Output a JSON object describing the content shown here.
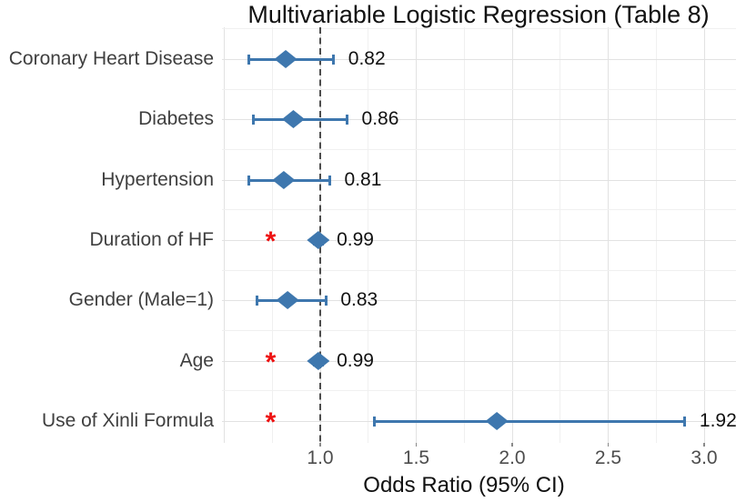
{
  "figure": {
    "title": "Multivariable Logistic Regression (Table 8)",
    "x_axis_label": "Odds Ratio (95% CI)"
  },
  "chart_data": {
    "type": "scatter",
    "variant": "forest-plot",
    "title": "Multivariable Logistic Regression (Table 8)",
    "xlabel": "Odds Ratio (95% CI)",
    "ylabel": "",
    "xlim": [
      0.49,
      3.17
    ],
    "xticks": [
      "1.0",
      "1.5",
      "2.0",
      "2.5",
      "3.0"
    ],
    "xtick_values": [
      1.0,
      1.5,
      2.0,
      2.5,
      3.0
    ],
    "grid": "major+minor",
    "legend": "none",
    "reference_line_x": 1.0,
    "sig_marker": "*",
    "rows": [
      {
        "label": "Coronary Heart Disease",
        "or": 0.82,
        "or_label": "0.82",
        "ci_low": 0.63,
        "ci_high": 1.07,
        "significant": false
      },
      {
        "label": "Diabetes",
        "or": 0.86,
        "or_label": "0.86",
        "ci_low": 0.65,
        "ci_high": 1.14,
        "significant": false
      },
      {
        "label": "Hypertension",
        "or": 0.81,
        "or_label": "0.81",
        "ci_low": 0.63,
        "ci_high": 1.05,
        "significant": false
      },
      {
        "label": "Duration of HF",
        "or": 0.99,
        "or_label": "0.99",
        "ci_low": 0.97,
        "ci_high": 1.01,
        "significant": true
      },
      {
        "label": "Gender (Male=1)",
        "or": 0.83,
        "or_label": "0.83",
        "ci_low": 0.67,
        "ci_high": 1.03,
        "significant": false
      },
      {
        "label": "Age",
        "or": 0.99,
        "or_label": "0.99",
        "ci_low": 0.97,
        "ci_high": 1.01,
        "significant": true
      },
      {
        "label": "Use of Xinli Formula",
        "or": 1.92,
        "or_label": "1.92",
        "ci_low": 1.28,
        "ci_high": 2.9,
        "significant": true
      }
    ],
    "colors": {
      "marker": "#3E77AE",
      "ci_line": "#3E77AE",
      "significance_star": "#EE1111",
      "reference_line": "#4D4D4D",
      "grid_major": "#E2E2E2",
      "grid_minor": "#F0F0F0",
      "tick_mark": "#8A8A8A",
      "title_text": "#111111",
      "category_label": "#3F3F3F",
      "tick_label": "#4D4D4D",
      "value_label": "#111111"
    }
  }
}
